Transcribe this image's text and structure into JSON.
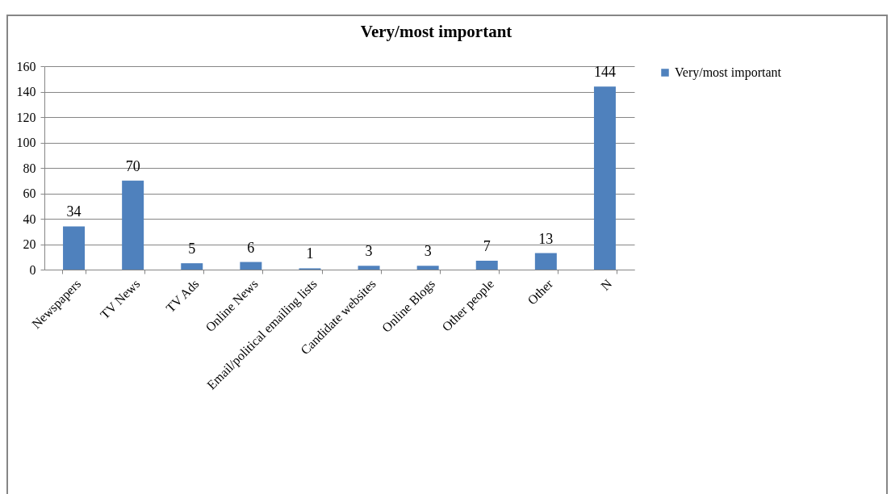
{
  "chart_data": {
    "type": "bar",
    "title": "Very/most important",
    "categories": [
      "Newspapers",
      "TV News",
      "TV Ads",
      "Online News",
      "Email/political emailing lists",
      "Candidate websites",
      "Online Blogs",
      "Other people",
      "Other",
      "N"
    ],
    "series": [
      {
        "name": "Very/most important",
        "color": "#4f81bd",
        "values": [
          34,
          70,
          5,
          6,
          1,
          3,
          3,
          7,
          13,
          144
        ]
      }
    ],
    "ylim": [
      0,
      160
    ],
    "yticks": [
      0,
      20,
      40,
      60,
      80,
      100,
      120,
      140,
      160
    ],
    "grid": "y",
    "legend": "right",
    "data_labels": true
  }
}
